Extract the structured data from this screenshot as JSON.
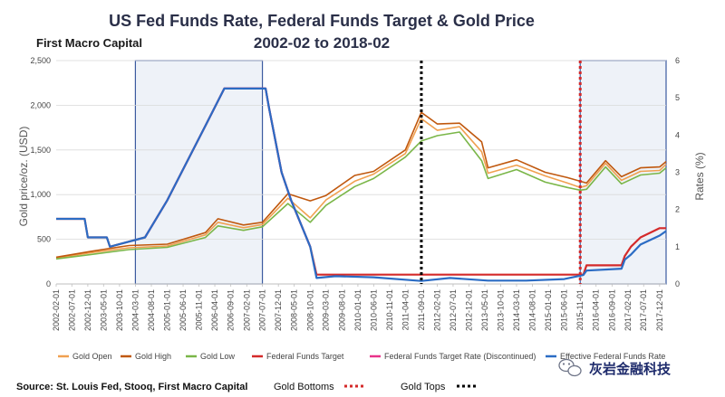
{
  "chart_data": {
    "type": "line",
    "title": "US Fed Funds Rate, Federal Funds Target & Gold Price",
    "subtitle": "2002-02 to 2018-02",
    "brand": "First Macro Capital",
    "ylabel": "Gold price/oz. (USD)",
    "y2label": "Rates (%)",
    "ylim": [
      0,
      2500
    ],
    "y2lim": [
      0,
      6
    ],
    "yticks": [
      "0",
      "500",
      "1,000",
      "1,500",
      "2,000",
      "2,500"
    ],
    "y2ticks": [
      "0",
      "1",
      "2",
      "3",
      "4",
      "5",
      "6"
    ],
    "xticks": [
      "2002-02-01",
      "2002-07-01",
      "2002-12-01",
      "2003-05-01",
      "2003-10-01",
      "2004-03-01",
      "2004-08-01",
      "2005-01-01",
      "2005-06-01",
      "2005-11-01",
      "2006-04-01",
      "2006-09-01",
      "2007-02-01",
      "2007-07-01",
      "2007-12-01",
      "2008-05-01",
      "2008-10-01",
      "2009-03-01",
      "2009-08-01",
      "2010-01-01",
      "2010-06-01",
      "2010-11-01",
      "2011-04-01",
      "2011-09-01",
      "2012-02-01",
      "2012-07-01",
      "2012-12-01",
      "2013-05-01",
      "2013-10-01",
      "2014-03-01",
      "2014-08-01",
      "2015-01-01",
      "2015-06-01",
      "2015-11-01",
      "2016-04-01",
      "2016-09-01",
      "2017-02-01",
      "2017-07-01",
      "2017-12-01"
    ],
    "gold_bottoms_x": [
      "2015-11-01"
    ],
    "gold_tops_x": [
      "2011-09-01"
    ],
    "shaded_ranges": [
      [
        "2004-03-01",
        "2007-07-01"
      ],
      [
        "2015-11-01",
        "2018-02-01"
      ]
    ],
    "series": [
      {
        "name": "Gold Open",
        "axis": "left",
        "color": "#f0a050",
        "x": [
          "2002-02-01",
          "2003-01-01",
          "2004-01-01",
          "2005-01-01",
          "2006-01-01",
          "2006-05-01",
          "2007-01-01",
          "2007-07-01",
          "2008-03-01",
          "2008-10-01",
          "2009-03-01",
          "2009-12-01",
          "2010-06-01",
          "2011-04-01",
          "2011-09-01",
          "2012-02-01",
          "2012-09-01",
          "2013-04-01",
          "2013-06-01",
          "2014-03-01",
          "2014-12-01",
          "2015-07-01",
          "2015-11-01",
          "2016-01-01",
          "2016-07-01",
          "2016-12-01",
          "2017-06-01",
          "2017-12-01",
          "2018-02-01"
        ],
        "values": [
          290,
          350,
          405,
          425,
          550,
          690,
          630,
          665,
          960,
          740,
          940,
          1150,
          1230,
          1460,
          1850,
          1720,
          1760,
          1480,
          1240,
          1330,
          1210,
          1130,
          1080,
          1100,
          1350,
          1160,
          1260,
          1270,
          1340
        ]
      },
      {
        "name": "Gold High",
        "axis": "left",
        "color": "#c0580e",
        "x": [
          "2002-02-01",
          "2003-01-01",
          "2004-01-01",
          "2005-01-01",
          "2006-01-01",
          "2006-05-01",
          "2007-01-01",
          "2007-07-01",
          "2008-03-01",
          "2008-10-01",
          "2009-03-01",
          "2009-12-01",
          "2010-06-01",
          "2011-04-01",
          "2011-09-01",
          "2012-02-01",
          "2012-09-01",
          "2013-04-01",
          "2013-06-01",
          "2014-03-01",
          "2014-12-01",
          "2015-07-01",
          "2015-11-01",
          "2016-01-01",
          "2016-07-01",
          "2016-12-01",
          "2017-06-01",
          "2017-12-01",
          "2018-02-01"
        ],
        "values": [
          300,
          365,
          430,
          445,
          575,
          730,
          660,
          690,
          1010,
          930,
          990,
          1215,
          1260,
          1500,
          1920,
          1790,
          1800,
          1590,
          1300,
          1390,
          1250,
          1190,
          1150,
          1130,
          1380,
          1200,
          1300,
          1310,
          1370
        ]
      },
      {
        "name": "Gold Low",
        "axis": "left",
        "color": "#7ab648",
        "x": [
          "2002-02-01",
          "2003-01-01",
          "2004-01-01",
          "2005-01-01",
          "2006-01-01",
          "2006-05-01",
          "2007-01-01",
          "2007-07-01",
          "2008-03-01",
          "2008-10-01",
          "2009-03-01",
          "2009-12-01",
          "2010-06-01",
          "2011-04-01",
          "2011-09-01",
          "2012-02-01",
          "2012-09-01",
          "2013-04-01",
          "2013-06-01",
          "2014-03-01",
          "2014-12-01",
          "2015-07-01",
          "2015-11-01",
          "2016-01-01",
          "2016-07-01",
          "2016-12-01",
          "2017-06-01",
          "2017-12-01",
          "2018-02-01"
        ],
        "values": [
          280,
          330,
          385,
          410,
          520,
          650,
          600,
          640,
          900,
          690,
          880,
          1090,
          1180,
          1420,
          1600,
          1660,
          1700,
          1380,
          1180,
          1280,
          1140,
          1080,
          1050,
          1060,
          1310,
          1120,
          1220,
          1240,
          1300
        ]
      },
      {
        "name": "Federal Funds Target",
        "axis": "right",
        "color": "#d42a2a",
        "x": [
          "2002-02-01",
          "2002-11-01",
          "2002-12-01",
          "2003-06-01",
          "2003-07-01",
          "2004-06-01",
          "2005-01-01",
          "2006-01-01",
          "2006-07-01",
          "2007-08-01",
          "2007-09-01",
          "2008-01-01",
          "2008-04-01",
          "2008-10-01",
          "2008-12-01",
          "2015-12-01",
          "2016-01-01",
          "2016-12-01",
          "2017-01-01",
          "2017-03-01",
          "2017-06-01",
          "2017-12-01",
          "2018-02-01"
        ],
        "values": [
          1.75,
          1.75,
          1.25,
          1.25,
          1.0,
          1.25,
          2.25,
          4.25,
          5.25,
          5.25,
          4.75,
          3.0,
          2.25,
          1.0,
          0.25,
          0.25,
          0.5,
          0.5,
          0.75,
          1.0,
          1.25,
          1.5,
          1.5
        ]
      },
      {
        "name": "Federal Funds Target Rate (Discontinued)",
        "axis": "right",
        "color": "#e8338a",
        "x": [
          "2004-06-01",
          "2005-01-01",
          "2006-01-01",
          "2006-07-01",
          "2007-08-01",
          "2007-09-01",
          "2008-01-01",
          "2008-04-01",
          "2008-10-01"
        ],
        "values": [
          1.25,
          2.25,
          4.25,
          5.25,
          5.25,
          4.75,
          3.0,
          2.25,
          1.0
        ]
      },
      {
        "name": "Effective Federal Funds Rate",
        "axis": "right",
        "color": "#2b6cc4",
        "x": [
          "2002-02-01",
          "2002-11-01",
          "2002-12-01",
          "2003-06-01",
          "2003-07-01",
          "2004-06-01",
          "2005-01-01",
          "2006-01-01",
          "2006-07-01",
          "2007-08-01",
          "2007-09-01",
          "2008-01-01",
          "2008-04-01",
          "2008-10-01",
          "2008-12-01",
          "2009-06-01",
          "2010-06-01",
          "2011-09-01",
          "2012-06-01",
          "2013-06-01",
          "2014-06-01",
          "2015-06-01",
          "2015-12-01",
          "2016-01-01",
          "2016-12-01",
          "2017-01-01",
          "2017-03-01",
          "2017-06-01",
          "2017-12-01",
          "2018-02-01"
        ],
        "values": [
          1.75,
          1.75,
          1.25,
          1.25,
          1.0,
          1.25,
          2.25,
          4.25,
          5.25,
          5.25,
          4.75,
          3.0,
          2.25,
          1.0,
          0.16,
          0.21,
          0.18,
          0.08,
          0.16,
          0.09,
          0.09,
          0.13,
          0.24,
          0.36,
          0.41,
          0.65,
          0.79,
          1.06,
          1.3,
          1.42
        ]
      }
    ],
    "legend": [
      {
        "label": "Gold Open",
        "color": "#f0a050"
      },
      {
        "label": "Gold High",
        "color": "#c0580e"
      },
      {
        "label": "Gold Low",
        "color": "#7ab648"
      },
      {
        "label": "Federal Funds Target",
        "color": "#d42a2a"
      },
      {
        "label": "Federal Funds Target Rate (Discontinued)",
        "color": "#e8338a"
      },
      {
        "label": "Effective Federal Funds Rate",
        "color": "#2b6cc4"
      }
    ]
  },
  "footer": {
    "source": "Source: St. Louis Fed, Stooq, First Macro Capital",
    "gold_bottoms": "Gold Bottoms",
    "gold_tops": "Gold Tops",
    "watermark": "灰岩金融科技"
  },
  "colors": {
    "shade_fill": "#eef2f8",
    "shade_stroke": "#3b5aa0",
    "bottoms": "#d42a2a",
    "tops": "#000000",
    "wechat_icon": "wechat-logo-icon"
  }
}
